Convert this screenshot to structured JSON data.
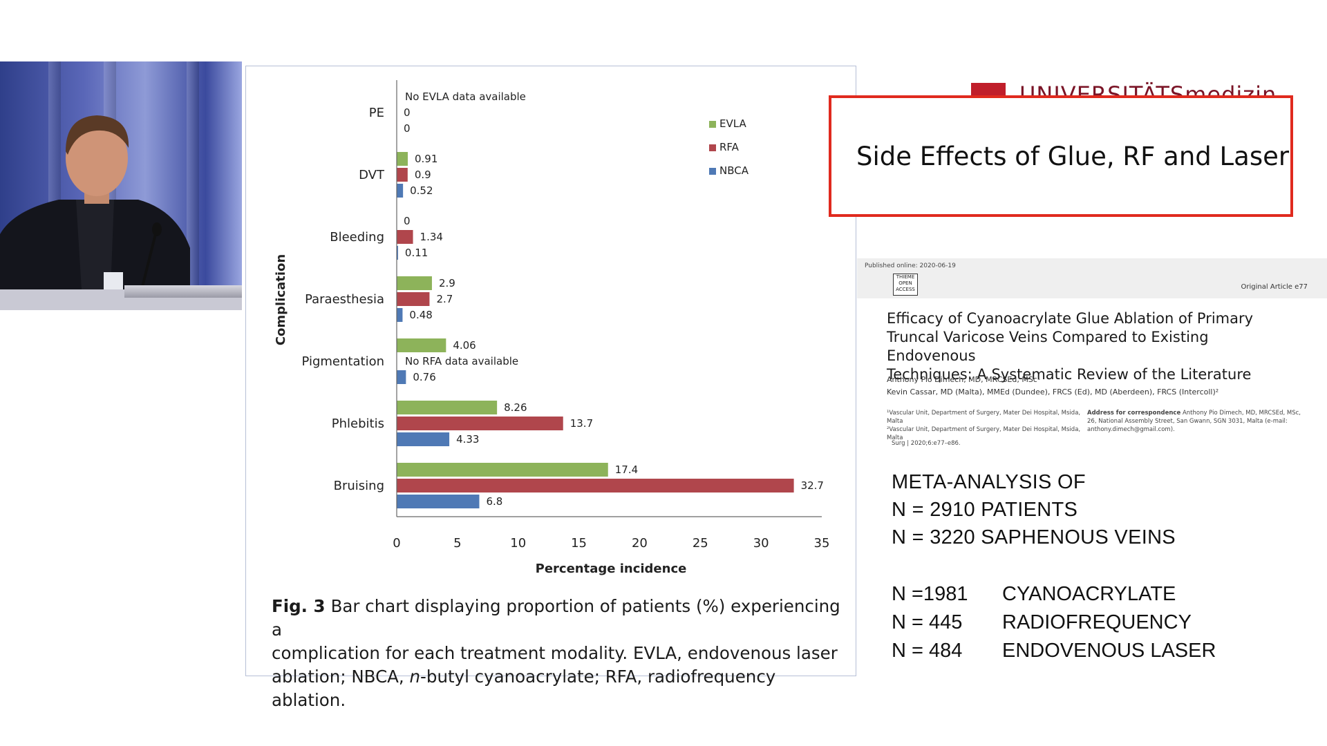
{
  "slide_title": "Side Effects of Glue, RF and Laser",
  "logo_text": "UNIVERSITÄTSmedizin",
  "chart_data": {
    "type": "bar",
    "orientation": "horizontal",
    "categories": [
      "PE",
      "DVT",
      "Bleeding",
      "Paraesthesia",
      "Pigmentation",
      "Phlebitis",
      "Bruising"
    ],
    "series": [
      {
        "name": "EVLA",
        "color": "#8db35a",
        "values": [
          null,
          0.91,
          0,
          2.9,
          4.06,
          8.26,
          17.4
        ]
      },
      {
        "name": "RFA",
        "color": "#b0464c",
        "values": [
          0,
          0.9,
          1.34,
          2.7,
          null,
          13.7,
          32.7
        ]
      },
      {
        "name": "NBCA",
        "color": "#4f79b5",
        "values": [
          0,
          0.52,
          0.11,
          0.48,
          0.76,
          4.33,
          6.8
        ]
      }
    ],
    "annotations": [
      {
        "category": "PE",
        "series": "EVLA",
        "text": "No EVLA data available"
      },
      {
        "category": "Pigmentation",
        "series": "RFA",
        "text": "No RFA data available"
      }
    ],
    "xlabel": "Percentage incidence",
    "ylabel": "Complication",
    "xlim": [
      0,
      35
    ],
    "xticks": [
      0,
      5,
      10,
      15,
      20,
      25,
      30,
      35
    ],
    "legend_position": "top-right",
    "grid": false
  },
  "caption": {
    "fig_label": "Fig. 3",
    "line1": "Bar chart displaying proportion of patients (%) experiencing a",
    "line2": "complication for each treatment modality. EVLA, endovenous laser",
    "line3_pre": "ablation; NBCA, ",
    "line3_ital": "n",
    "line3_post": "-butyl cyanoacrylate; RFA, radiofrequency ablation."
  },
  "paper": {
    "published": "Published online: 2020-06-19",
    "badge": "THIEME OPEN ACCESS",
    "article_type": "Original Article    e77",
    "title_line1": "Efficacy of Cyanoacrylate Glue Ablation of Primary",
    "title_line2": "Truncal Varicose Veins Compared to Existing Endovenous",
    "title_line3": "Techniques: A Systematic Review of the Literature",
    "author1": "Anthony Pio Dimech, MD, MRCSEd, MSc¹",
    "author2": "Kevin Cassar, MD (Malta), MMEd (Dundee), FRCS (Ed), MD (Aberdeen), FRCS (Intercoll)²",
    "affil1": "¹Vascular Unit, Department of Surgery, Mater Dei Hospital, Msida, Malta",
    "affil2": "²Vascular Unit, Department of Surgery, Mater Dei Hospital, Msida, Malta",
    "corr_label": "Address for correspondence",
    "corr_text": "Anthony Pio Dimech, MD, MRCSEd, MSc, 26, National Assembly Street, San Gwann, SGN 3031, Malta (e-mail: anthony.dimech@gmail.com).",
    "citation": "Surg | 2020;6:e77–e86."
  },
  "meta": {
    "line1": "META-ANALYSIS OF",
    "line2": "N = 2910 PATIENTS",
    "line3": "N = 3220 SAPHENOUS VEINS"
  },
  "counts": [
    {
      "n": "N =1981",
      "label": "CYANOACRYLATE"
    },
    {
      "n": "N = 445",
      "label": "RADIOFREQUENCY"
    },
    {
      "n": "N = 484",
      "label": "ENDOVENOUS LASER"
    }
  ]
}
